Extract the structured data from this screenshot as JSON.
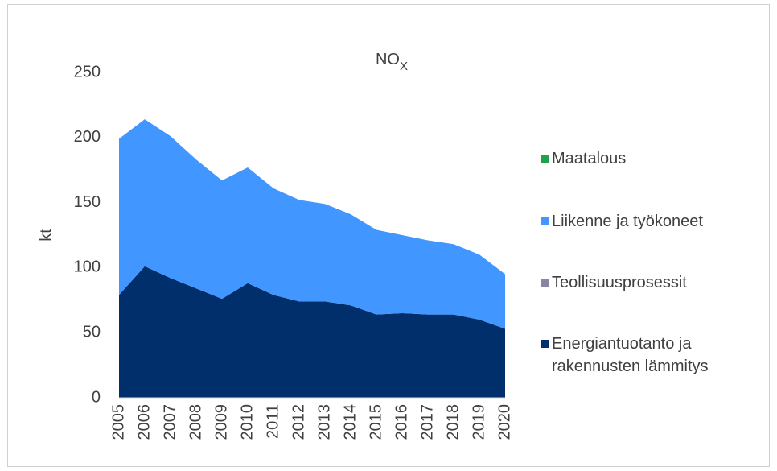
{
  "chart_data": {
    "type": "stacked_area",
    "title": "NO",
    "title_subscript": "X",
    "y_label": "kt",
    "categories": [
      "2005",
      "2006",
      "2007",
      "2008",
      "2009",
      "2010",
      "2011",
      "2012",
      "2013",
      "2014",
      "2015",
      "2016",
      "2017",
      "2018",
      "2019",
      "2020"
    ],
    "series": [
      {
        "name": "Maatalous",
        "color": "#22a04a",
        "values": [
          0,
          0,
          0,
          0,
          0,
          0,
          0,
          0,
          0,
          0,
          0,
          0,
          0,
          0,
          0,
          0
        ]
      },
      {
        "name": "Liikenne ja työkoneet",
        "color": "#4196ff",
        "values": [
          120,
          113,
          109,
          99,
          91,
          89,
          82,
          78,
          75,
          70,
          65,
          60,
          57,
          54,
          50,
          42
        ]
      },
      {
        "name": "Teollisuusprosessit",
        "color": "#8a84a3",
        "values": [
          0,
          0,
          0,
          0,
          0,
          0,
          0,
          0,
          0,
          0,
          0,
          0,
          0,
          0,
          0,
          0
        ]
      },
      {
        "name": "Energiantuotanto ja rakennusten lämmitys",
        "color": "#002f6c",
        "values": [
          79,
          101,
          92,
          84,
          76,
          88,
          79,
          74,
          74,
          71,
          64,
          65,
          64,
          64,
          60,
          53
        ]
      }
    ],
    "ylim": [
      0,
      250
    ],
    "yticks": [
      0,
      50,
      100,
      150,
      200,
      250
    ],
    "grid": false,
    "legend": "right"
  }
}
